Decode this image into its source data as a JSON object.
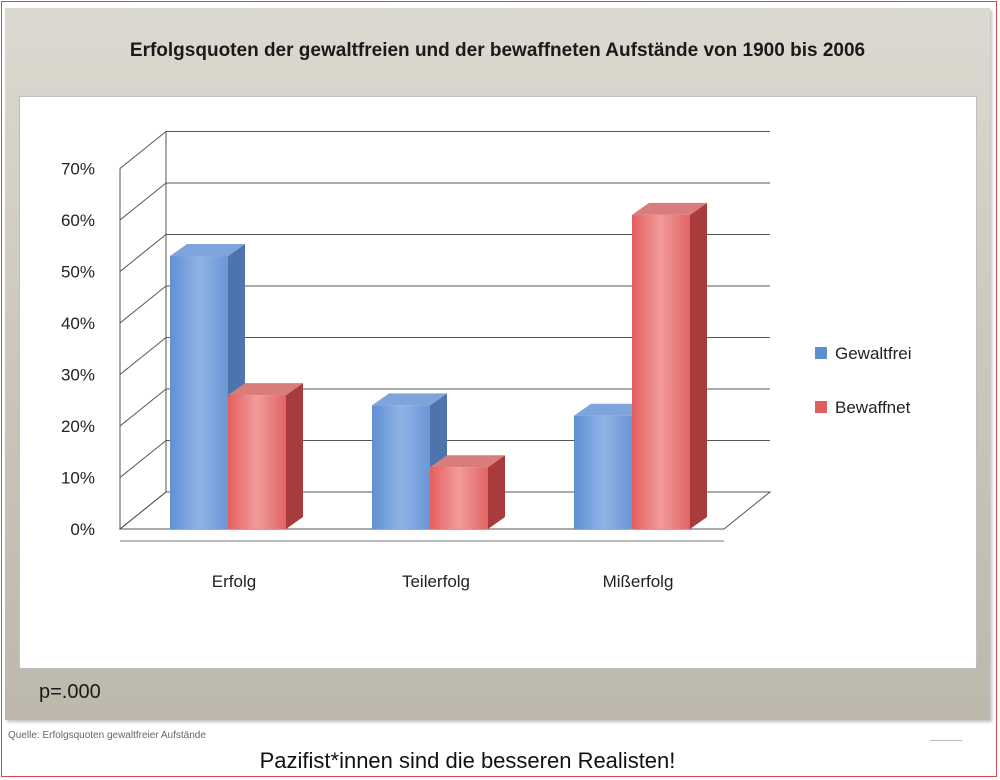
{
  "slide": {
    "title": "Erfolgsquoten der gewaltfreien und der bewaffneten Aufstände von 1900 bis 2006",
    "pvalue": "p=.000"
  },
  "source": "Quelle: Erfolgsquoten gewaltfreier Aufstände",
  "caption": "Pazifist*innen sind die besseren Realisten!",
  "chart_data": {
    "type": "bar",
    "title": "Erfolgsquoten der gewaltfreien und der bewaffneten Aufstände von 1900 bis 2006",
    "categories": [
      "Erfolg",
      "Teilerfolg",
      "Mißerfolg"
    ],
    "series": [
      {
        "name": "Gewaltfrei",
        "values": [
          53,
          24,
          22
        ]
      },
      {
        "name": "Bewaffnet",
        "values": [
          26,
          12,
          61
        ]
      }
    ],
    "ylim": [
      0,
      70
    ],
    "yticks": [
      "0%",
      "10%",
      "20%",
      "30%",
      "40%",
      "50%",
      "60%",
      "70%"
    ],
    "grid": true,
    "legend": "right",
    "colors": {
      "Gewaltfrei": "#6f9ad6",
      "Bewaffnet": "#e46a6a"
    }
  }
}
